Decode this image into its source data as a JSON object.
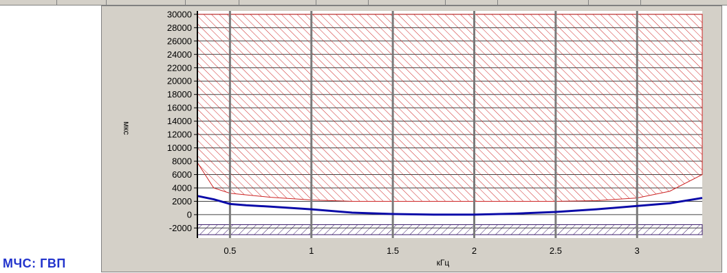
{
  "section_label": "МЧС: ГВП",
  "colors": {
    "panel_bg": "#d4d0c8",
    "plot_bg": "#ffffff",
    "hatch_upper": "#cc2222",
    "hatch_lower": "#3a1a6a",
    "curve": "#0a0aa8",
    "vgrid": "#7a7a7a",
    "hgrid": "#404040",
    "label": "#2233cc"
  },
  "chart_data": {
    "type": "line",
    "xlabel": "кГц",
    "ylabel": "мкс",
    "xlim": [
      0.3,
      3.4
    ],
    "ylim": [
      -3500,
      30500
    ],
    "x_ticks": [
      0.5,
      1,
      1.5,
      2,
      2.5,
      3
    ],
    "x_tick_labels": [
      "0.5",
      "1",
      "1.5",
      "2",
      "2.5",
      "3"
    ],
    "y_ticks": [
      -2000,
      0,
      2000,
      4000,
      6000,
      8000,
      10000,
      12000,
      14000,
      16000,
      18000,
      20000,
      22000,
      24000,
      26000,
      28000,
      30000
    ],
    "y_tick_labels": [
      "-2000",
      "0",
      "2000",
      "4000",
      "6000",
      "8000",
      "10000",
      "12000",
      "14000",
      "16000",
      "18000",
      "20000",
      "22000",
      "24000",
      "26000",
      "28000",
      "30000"
    ],
    "grid": true,
    "upper_mask": {
      "x": [
        0.3,
        0.4,
        0.5,
        0.75,
        1.0,
        1.25,
        1.5,
        2.0,
        2.5,
        2.75,
        3.0,
        3.2,
        3.4
      ],
      "y": [
        7800,
        4000,
        3200,
        2600,
        2200,
        2000,
        2000,
        2000,
        2000,
        2100,
        2500,
        3500,
        6000
      ],
      "top": 30000
    },
    "lower_mask": {
      "y_top": -1500,
      "y_bottom": -3000,
      "x_range": [
        0.3,
        3.4
      ]
    },
    "series": [
      {
        "x": [
          0.3,
          0.4,
          0.5,
          0.6,
          0.75,
          1.0,
          1.25,
          1.5,
          1.75,
          2.0,
          2.25,
          2.5,
          2.75,
          3.0,
          3.2,
          3.4
        ],
        "y": [
          2800,
          2300,
          1600,
          1400,
          1200,
          800,
          300,
          100,
          0,
          0,
          150,
          400,
          800,
          1300,
          1700,
          2500
        ]
      }
    ]
  }
}
